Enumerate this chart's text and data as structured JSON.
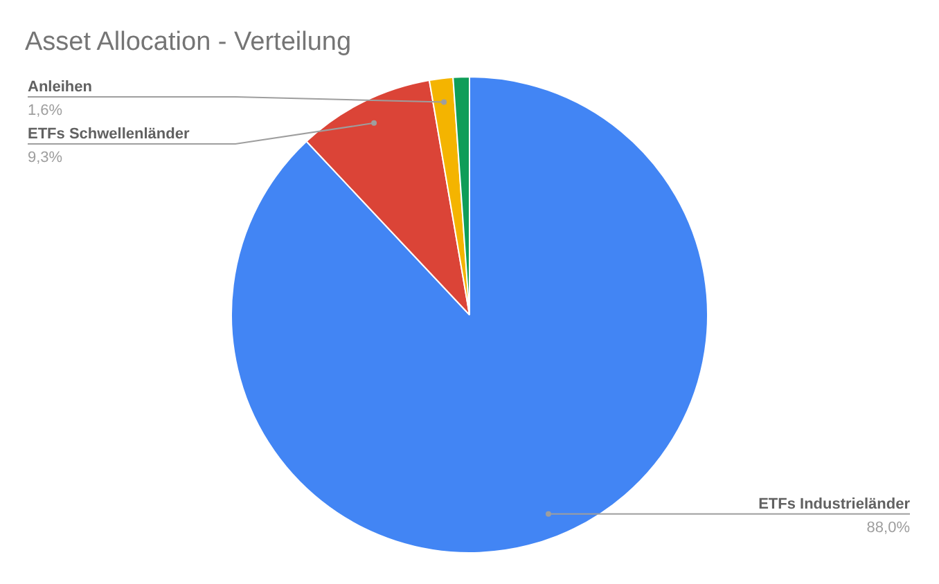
{
  "chart_data": {
    "type": "pie",
    "title": "Asset Allocation - Verteilung",
    "categories": [
      "ETFs Industrieländer",
      "ETFs Schwellenländer",
      "Anleihen",
      null
    ],
    "values": [
      88.0,
      9.3,
      1.6,
      1.1
    ],
    "value_labels": [
      "88,0%",
      "9,3%",
      "1,6%",
      null
    ],
    "colors": [
      "#4285f4",
      "#db4437",
      "#f4b400",
      "#0f9d58"
    ],
    "legend": false
  }
}
